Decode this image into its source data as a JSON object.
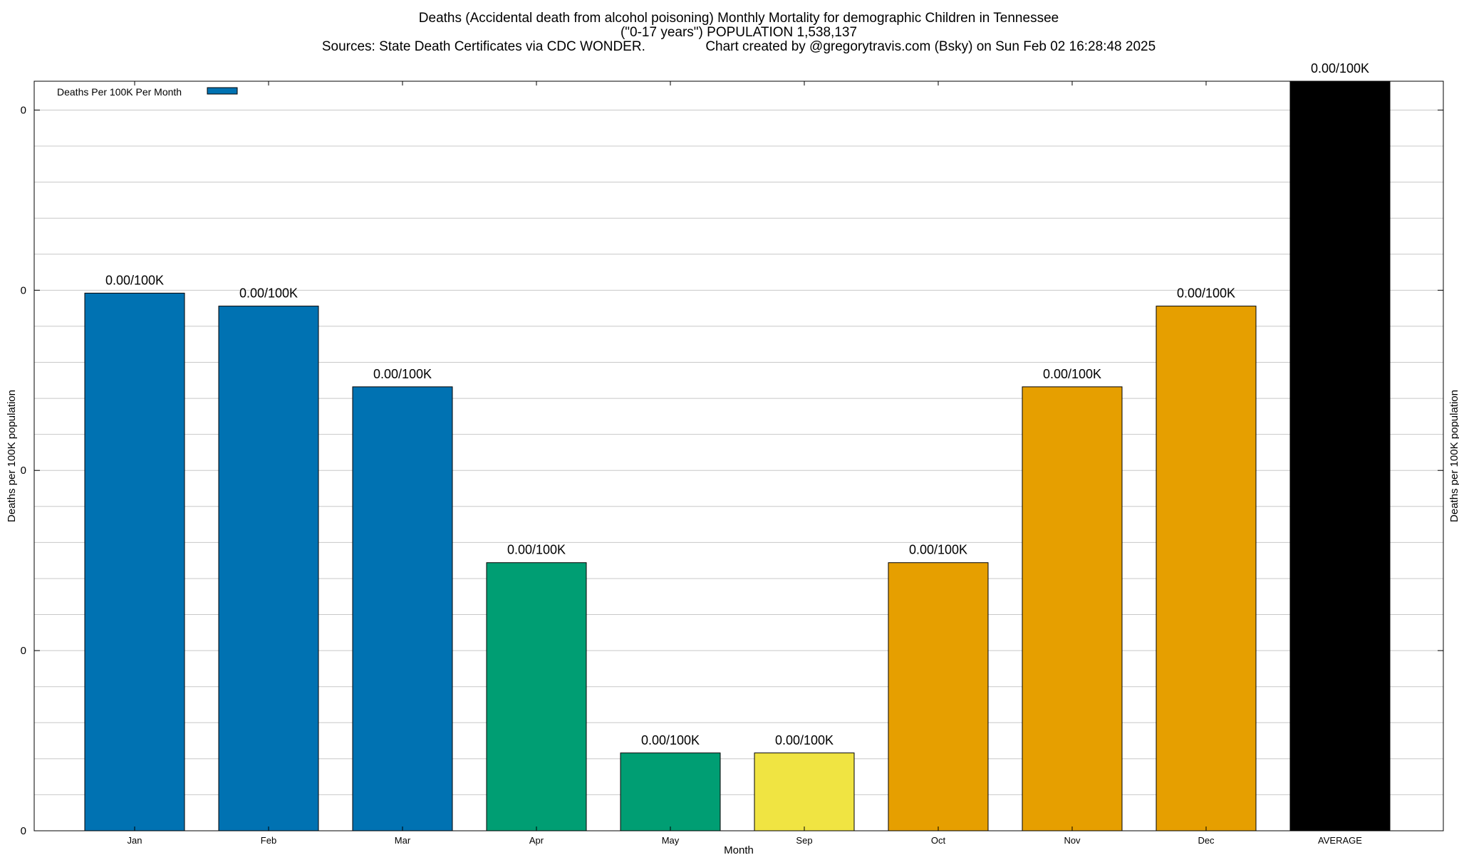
{
  "chart_data": {
    "type": "bar",
    "title_lines": [
      "Deaths (Accidental death from alcohol poisoning) Monthly Mortality for demographic Children in Tennessee",
      "(\"0-17 years\") POPULATION 1,538,137",
      "Sources: State Death Certificates via CDC WONDER.                Chart created by @gregorytravis.com (Bsky) on Sun Feb 02 16:28:48 2025"
    ],
    "xlabel": "Month",
    "ylabel": "Deaths per 100K population",
    "y2label": "Deaths per 100K population",
    "categories": [
      "Jan",
      "Feb",
      "Mar",
      "Apr",
      "May",
      "Sep",
      "Oct",
      "Nov",
      "Dec",
      "AVERAGE"
    ],
    "values": [
      0.00373,
      0.00364,
      0.00308,
      0.00186,
      0.00054,
      0.00054,
      0.00186,
      0.00308,
      0.00364,
      0.0052
    ],
    "value_labels": [
      "0.00/100K",
      "0.00/100K",
      "0.00/100K",
      "0.00/100K",
      "0.00/100K",
      "0.00/100K",
      "0.00/100K",
      "0.00/100K",
      "0.00/100K",
      "0.00/100K"
    ],
    "bar_colors": [
      "#0072b2",
      "#0072b2",
      "#0072b2",
      "#009e73",
      "#009e73",
      "#f0e442",
      "#e69f00",
      "#e69f00",
      "#e69f00",
      "#000000"
    ],
    "ylim": [
      0,
      0.0052
    ],
    "ytick_values": [
      0,
      0.00125,
      0.0025,
      0.00375,
      0.005
    ],
    "ytick_labels": [
      "0",
      "0",
      "0",
      "0",
      "0"
    ],
    "grid": true,
    "legend": {
      "label": "Deaths Per 100K Per Month",
      "color": "#0072b2",
      "placement": "top-left"
    }
  }
}
